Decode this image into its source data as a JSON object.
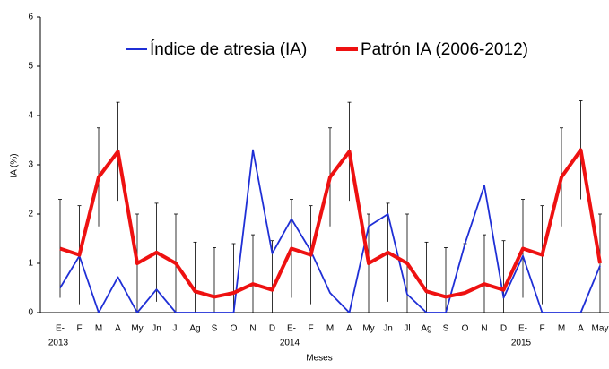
{
  "chart_data": {
    "type": "line",
    "categories": [
      "E-",
      "F",
      "M",
      "A",
      "My",
      "Jn",
      "Jl",
      "Ag",
      "S",
      "O",
      "N",
      "D",
      "E-",
      "F",
      "M",
      "A",
      "My",
      "Jn",
      "Jl",
      "Ag",
      "S",
      "O",
      "N",
      "D",
      "E-",
      "F",
      "M",
      "A",
      "May"
    ],
    "x_groups": [
      {
        "label": "2013",
        "index": 0
      },
      {
        "label": "2014",
        "index": 12
      },
      {
        "label": "2015",
        "index": 24
      }
    ],
    "x_label": "Meses",
    "y_label": "IA (%)",
    "ylim": [
      0,
      6
    ],
    "yticks": [
      0,
      1,
      2,
      3,
      4,
      5,
      6
    ],
    "series": [
      {
        "name": "Índice de atresia (IA)",
        "color": "#1f2fd6",
        "values": [
          0.5,
          1.15,
          0,
          0.72,
          0,
          0.47,
          0,
          0,
          0,
          0,
          3.3,
          1.2,
          1.9,
          1.25,
          0.4,
          0,
          1.75,
          2.0,
          0.37,
          0,
          0,
          1.4,
          2.58,
          0.3,
          1.15,
          0,
          0,
          0,
          0.95
        ]
      },
      {
        "name": "Patrón IA (2006-2012)",
        "color": "#ee1111",
        "values": [
          1.3,
          1.17,
          2.75,
          3.27,
          1.0,
          1.22,
          1.0,
          0.43,
          0.32,
          0.4,
          0.58,
          0.46,
          1.3,
          1.17,
          2.75,
          3.27,
          1.0,
          1.22,
          1.0,
          0.43,
          0.32,
          0.4,
          0.58,
          0.46,
          1.3,
          1.17,
          2.75,
          3.3,
          1.0
        ],
        "errors": [
          1,
          1,
          1,
          1,
          1,
          1,
          1,
          1,
          1,
          1,
          1,
          1,
          1,
          1,
          1,
          1,
          1,
          1,
          1,
          1,
          1,
          1,
          1,
          1,
          1,
          1,
          1,
          1,
          1
        ]
      }
    ]
  }
}
